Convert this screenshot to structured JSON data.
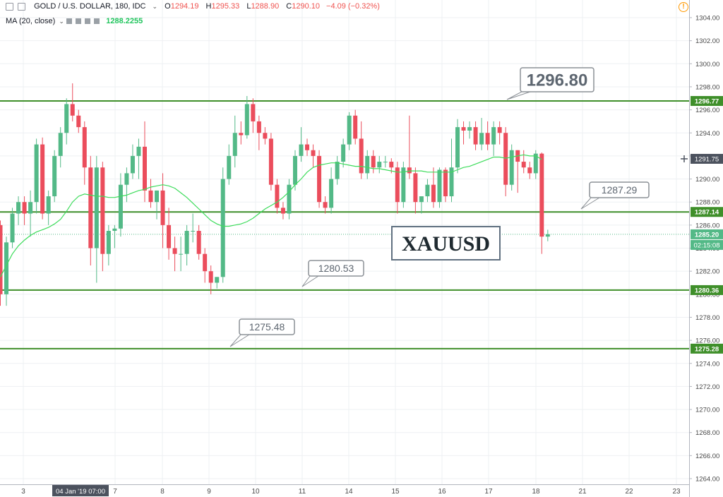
{
  "header": {
    "symbol": "GOLD / U.S. DOLLAR, 180, IDC",
    "open_label": "O",
    "open": "1294.19",
    "high_label": "H",
    "high": "1295.33",
    "low_label": "L",
    "low": "1288.90",
    "close_label": "C",
    "close": "1290.10",
    "change": "−4.09 (−0.32%)",
    "ma_label": "MA (20, close)",
    "ma_value": "1288.2255"
  },
  "chart_data": {
    "type": "candlestick",
    "title": "",
    "watermark": "XAUUSD",
    "y_axis": {
      "range": [
        1263,
        1305
      ],
      "ticks": [
        "1264.00",
        "1266.00",
        "1268.00",
        "1270.00",
        "1272.00",
        "1274.00",
        "1276.00",
        "1278.00",
        "1280.00",
        "1282.00",
        "1284.00",
        "1286.00",
        "1288.00",
        "1290.00",
        "1292.00",
        "1294.00",
        "1296.00",
        "1298.00",
        "1300.00",
        "1302.00",
        "1304.00"
      ]
    },
    "x_axis": {
      "labels": [
        "3",
        "7",
        "8",
        "9",
        "10",
        "11",
        "14",
        "15",
        "16",
        "17",
        "18",
        "21",
        "22",
        "23"
      ],
      "cursor_label": "04 Jan '19  07:00"
    },
    "price_tags": [
      {
        "value": 1296.77,
        "text": "1296.77"
      },
      {
        "value": 1287.14,
        "text": "1287.14"
      },
      {
        "value": 1285.2,
        "text": "1285.20"
      },
      {
        "value": 1280.36,
        "text": "1280.36"
      },
      {
        "value": 1275.28,
        "text": "1275.28"
      }
    ],
    "crosshair_tag": {
      "value": 1291.75,
      "text": "1291.75"
    },
    "countdown": "02:15:08",
    "levels": [
      {
        "value": 1296.77,
        "callout": "1296.80"
      },
      {
        "value": 1287.14,
        "callout": "1287.29"
      },
      {
        "value": 1280.36,
        "callout": "1280.53"
      },
      {
        "value": 1275.28,
        "callout": "1275.48"
      }
    ],
    "colors": {
      "up": "#53b987",
      "down": "#eb4d5c",
      "ma": "#3ddc5b",
      "level": "#3f8f2a",
      "axis_text": "#4a4a4a"
    },
    "candles": [
      [
        1286,
        1286.4,
        1279,
        1280
      ],
      [
        1280,
        1285,
        1279,
        1284.5
      ],
      [
        1284.5,
        1287.5,
        1284,
        1287
      ],
      [
        1287,
        1288.5,
        1286,
        1288
      ],
      [
        1288,
        1288.5,
        1286,
        1287
      ],
      [
        1287,
        1289,
        1285,
        1288
      ],
      [
        1288,
        1293.5,
        1287,
        1293
      ],
      [
        1293,
        1293.6,
        1286.5,
        1287
      ],
      [
        1287,
        1289,
        1286,
        1288.5
      ],
      [
        1288.5,
        1292.5,
        1288,
        1292
      ],
      [
        1292,
        1294.5,
        1291,
        1294
      ],
      [
        1294,
        1297,
        1293,
        1296.5
      ],
      [
        1296.5,
        1298.3,
        1295,
        1295.5
      ],
      [
        1295.5,
        1296,
        1294,
        1294.5
      ],
      [
        1294.5,
        1295,
        1289.5,
        1291
      ],
      [
        1291,
        1292,
        1282.5,
        1284
      ],
      [
        1284,
        1292,
        1281,
        1291
      ],
      [
        1291,
        1291.5,
        1282,
        1283.5
      ],
      [
        1283.5,
        1286,
        1282.5,
        1285.5
      ],
      [
        1285.5,
        1286,
        1284,
        1285.7
      ],
      [
        1285.7,
        1290.5,
        1285,
        1289.5
      ],
      [
        1289.5,
        1291,
        1288,
        1290.5
      ],
      [
        1290.5,
        1293,
        1290,
        1292
      ],
      [
        1292,
        1293.5,
        1290,
        1292.8
      ],
      [
        1292.8,
        1295,
        1288,
        1289
      ],
      [
        1289,
        1290,
        1287.5,
        1288
      ],
      [
        1288,
        1289,
        1286.5,
        1289
      ],
      [
        1289,
        1290.5,
        1284,
        1286
      ],
      [
        1286,
        1287.5,
        1283,
        1284
      ],
      [
        1284,
        1285,
        1282,
        1283.5
      ],
      [
        1283.5,
        1285,
        1282,
        1283.5
      ],
      [
        1283.5,
        1286,
        1282.5,
        1285.5
      ],
      [
        1285.5,
        1287,
        1284.5,
        1285.5
      ],
      [
        1285.5,
        1286,
        1283,
        1283.5
      ],
      [
        1283.5,
        1284,
        1281,
        1282
      ],
      [
        1282,
        1282.5,
        1280,
        1281
      ],
      [
        1281,
        1281.5,
        1280.5,
        1281.5
      ],
      [
        1281.5,
        1291,
        1281,
        1290
      ],
      [
        1290,
        1293,
        1289.5,
        1292
      ],
      [
        1292,
        1295.5,
        1291,
        1294
      ],
      [
        1294,
        1295,
        1293,
        1293.8
      ],
      [
        1293.8,
        1297.2,
        1293.5,
        1296.5
      ],
      [
        1296.5,
        1297,
        1294,
        1295
      ],
      [
        1295,
        1295.5,
        1292.5,
        1294
      ],
      [
        1294,
        1294.5,
        1293,
        1293.5
      ],
      [
        1293.5,
        1294,
        1289,
        1289.5
      ],
      [
        1289.5,
        1290,
        1287,
        1287.5
      ],
      [
        1287.5,
        1288,
        1286.5,
        1287
      ],
      [
        1287,
        1290,
        1286.5,
        1289.5
      ],
      [
        1289.5,
        1292.5,
        1289,
        1292
      ],
      [
        1292,
        1294.5,
        1291.5,
        1293
      ],
      [
        1293,
        1293.5,
        1292,
        1292.5
      ],
      [
        1292.5,
        1293,
        1291,
        1292
      ],
      [
        1292,
        1292.5,
        1287.5,
        1288
      ],
      [
        1288,
        1288.5,
        1287,
        1287.5
      ],
      [
        1287.5,
        1291,
        1287,
        1290
      ],
      [
        1290,
        1292,
        1289.5,
        1291.5
      ],
      [
        1291.5,
        1293.5,
        1291,
        1293
      ],
      [
        1293,
        1295.8,
        1292.5,
        1295.5
      ],
      [
        1295.5,
        1296,
        1293,
        1293.5
      ],
      [
        1293.5,
        1295,
        1290,
        1290.5
      ],
      [
        1290.5,
        1292.5,
        1290,
        1292
      ],
      [
        1292,
        1292.5,
        1290.5,
        1291
      ],
      [
        1291,
        1292,
        1290.5,
        1291.5
      ],
      [
        1291.5,
        1292,
        1291,
        1291.5
      ],
      [
        1291.5,
        1291.8,
        1290.5,
        1291
      ],
      [
        1291,
        1291.5,
        1287,
        1288
      ],
      [
        1288,
        1291.5,
        1287.5,
        1291
      ],
      [
        1291,
        1295.5,
        1290,
        1290.5
      ],
      [
        1290.5,
        1291,
        1287,
        1288
      ],
      [
        1288,
        1288.5,
        1287,
        1288.5
      ],
      [
        1288.5,
        1290,
        1288,
        1289.5
      ],
      [
        1289.5,
        1291,
        1287.5,
        1288
      ],
      [
        1288,
        1291,
        1287.5,
        1290.8
      ],
      [
        1290.8,
        1291,
        1288,
        1288.5
      ],
      [
        1288.5,
        1293.5,
        1288,
        1291
      ],
      [
        1291,
        1295.2,
        1290.5,
        1294.5
      ],
      [
        1294.5,
        1295,
        1293,
        1294.2
      ],
      [
        1294.2,
        1295,
        1293.5,
        1294.5
      ],
      [
        1294.5,
        1295,
        1292.5,
        1293
      ],
      [
        1293,
        1295.3,
        1292.5,
        1294
      ],
      [
        1294,
        1295,
        1292.5,
        1293
      ],
      [
        1293,
        1295,
        1292,
        1294.5
      ],
      [
        1294.5,
        1295,
        1293,
        1294
      ],
      [
        1294,
        1294.5,
        1288.5,
        1289.5
      ],
      [
        1289.5,
        1293,
        1289,
        1292.5
      ],
      [
        1292.5,
        1292.5,
        1288.8,
        1291.5
      ],
      [
        1291.5,
        1292.5,
        1290.5,
        1291
      ],
      [
        1291,
        1291.5,
        1290,
        1290.5
      ],
      [
        1290.5,
        1292.5,
        1290,
        1292.2
      ],
      [
        1292.2,
        1292.3,
        1283.5,
        1285
      ],
      [
        1285,
        1285.6,
        1284.6,
        1285.2
      ]
    ],
    "ma": [
      1281.5,
      1282.5,
      1283.5,
      1284.2,
      1284.7,
      1285.1,
      1285.4,
      1285.6,
      1285.8,
      1286.1,
      1286.5,
      1287.2,
      1288,
      1288.5,
      1288.7,
      1288.6,
      1288.5,
      1288.5,
      1288.4,
      1288.4,
      1288.5,
      1288.6,
      1288.8,
      1289,
      1289.1,
      1289.3,
      1289.4,
      1289.5,
      1289.4,
      1289.2,
      1288.8,
      1288.4,
      1287.9,
      1287.4,
      1286.9,
      1286.4,
      1286.1,
      1285.9,
      1285.9,
      1286,
      1286.1,
      1286.3,
      1286.6,
      1287,
      1287.4,
      1287.7,
      1288,
      1288.4,
      1288.9,
      1289.5,
      1290,
      1290.6,
      1291,
      1291.2,
      1291.3,
      1291.4,
      1291.4,
      1291.3,
      1291.2,
      1291.1,
      1291.1,
      1291,
      1290.9,
      1290.9,
      1290.8,
      1290.7,
      1290.6,
      1290.6,
      1290.7,
      1290.7,
      1290.7,
      1290.6,
      1290.6,
      1290.6,
      1290.6,
      1290.6,
      1290.8,
      1291,
      1291.1,
      1291.3,
      1291.5,
      1291.7,
      1291.9,
      1291.9,
      1291.8,
      1291.9,
      1292,
      1292.1,
      1292,
      1292,
      1291.7
    ]
  }
}
